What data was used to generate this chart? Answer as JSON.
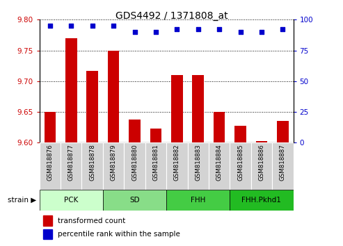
{
  "title": "GDS4492 / 1371808_at",
  "samples": [
    "GSM818876",
    "GSM818877",
    "GSM818878",
    "GSM818879",
    "GSM818880",
    "GSM818881",
    "GSM818882",
    "GSM818883",
    "GSM818884",
    "GSM818885",
    "GSM818886",
    "GSM818887"
  ],
  "bar_values": [
    9.65,
    9.77,
    9.717,
    9.75,
    9.638,
    9.623,
    9.71,
    9.71,
    9.65,
    9.628,
    9.603,
    9.635
  ],
  "percentile_values": [
    95,
    95,
    95,
    95,
    90,
    90,
    92,
    92,
    92,
    90,
    90,
    92
  ],
  "ylim_left": [
    9.6,
    9.8
  ],
  "ylim_right": [
    0,
    100
  ],
  "yticks_left": [
    9.6,
    9.65,
    9.7,
    9.75,
    9.8
  ],
  "yticks_right": [
    0,
    25,
    50,
    75,
    100
  ],
  "bar_color": "#cc0000",
  "dot_color": "#0000cc",
  "bar_baseline": 9.6,
  "groups": [
    {
      "label": "PCK",
      "start": 0,
      "end": 3,
      "color": "#ccffcc"
    },
    {
      "label": "SD",
      "start": 3,
      "end": 6,
      "color": "#88dd88"
    },
    {
      "label": "FHH",
      "start": 6,
      "end": 9,
      "color": "#44cc44"
    },
    {
      "label": "FHH.Pkhd1",
      "start": 9,
      "end": 12,
      "color": "#22bb22"
    }
  ],
  "legend_red": "transformed count",
  "legend_blue": "percentile rank within the sample",
  "tick_label_color_left": "#cc0000",
  "tick_label_color_right": "#0000cc"
}
